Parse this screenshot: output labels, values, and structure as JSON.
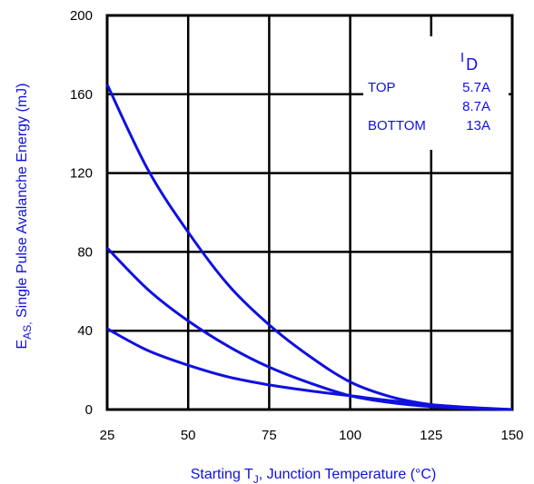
{
  "chart_data": {
    "type": "line",
    "xlabel": {
      "prefix": "Starting T",
      "sub": "J",
      "suffix": ", Junction Temperature (°C)"
    },
    "ylabel": {
      "prefix": "E",
      "sub": "AS,",
      "suffix": " Single Pulse Avalanche Energy (mJ)"
    },
    "xlim": [
      25,
      150
    ],
    "ylim": [
      0,
      200
    ],
    "xticks": [
      25,
      50,
      75,
      100,
      125,
      150
    ],
    "yticks": [
      0,
      40,
      80,
      120,
      160,
      200
    ],
    "grid": true,
    "line_color": "#1010e0",
    "legend": {
      "placement": "top-right",
      "header_main": "I",
      "header_sub": "D",
      "rows": [
        {
          "position": "TOP",
          "value": "5.7A"
        },
        {
          "position": "",
          "value": "8.7A"
        },
        {
          "position": "BOTTOM",
          "value": "13A"
        }
      ]
    },
    "series": [
      {
        "x": [
          25,
          37.5,
          50,
          62.5,
          75,
          87.5,
          100,
          112.5,
          125,
          137.5,
          150
        ],
        "y": [
          165,
          122,
          90,
          63,
          43,
          27,
          14,
          6.5,
          2.5,
          0.7,
          0
        ]
      },
      {
        "x": [
          25,
          37.5,
          50,
          62.5,
          75,
          87.5,
          100,
          112.5,
          125,
          137.5,
          150
        ],
        "y": [
          82,
          61,
          45,
          32,
          21.5,
          13.5,
          7,
          3.5,
          1.5,
          0.5,
          0
        ]
      },
      {
        "x": [
          25,
          37.5,
          50,
          62.5,
          75,
          87.5,
          100,
          112.5,
          125,
          137.5,
          150
        ],
        "y": [
          41,
          30,
          22.5,
          16.5,
          12.5,
          9.5,
          7,
          4.5,
          2.5,
          1,
          0
        ]
      }
    ]
  }
}
